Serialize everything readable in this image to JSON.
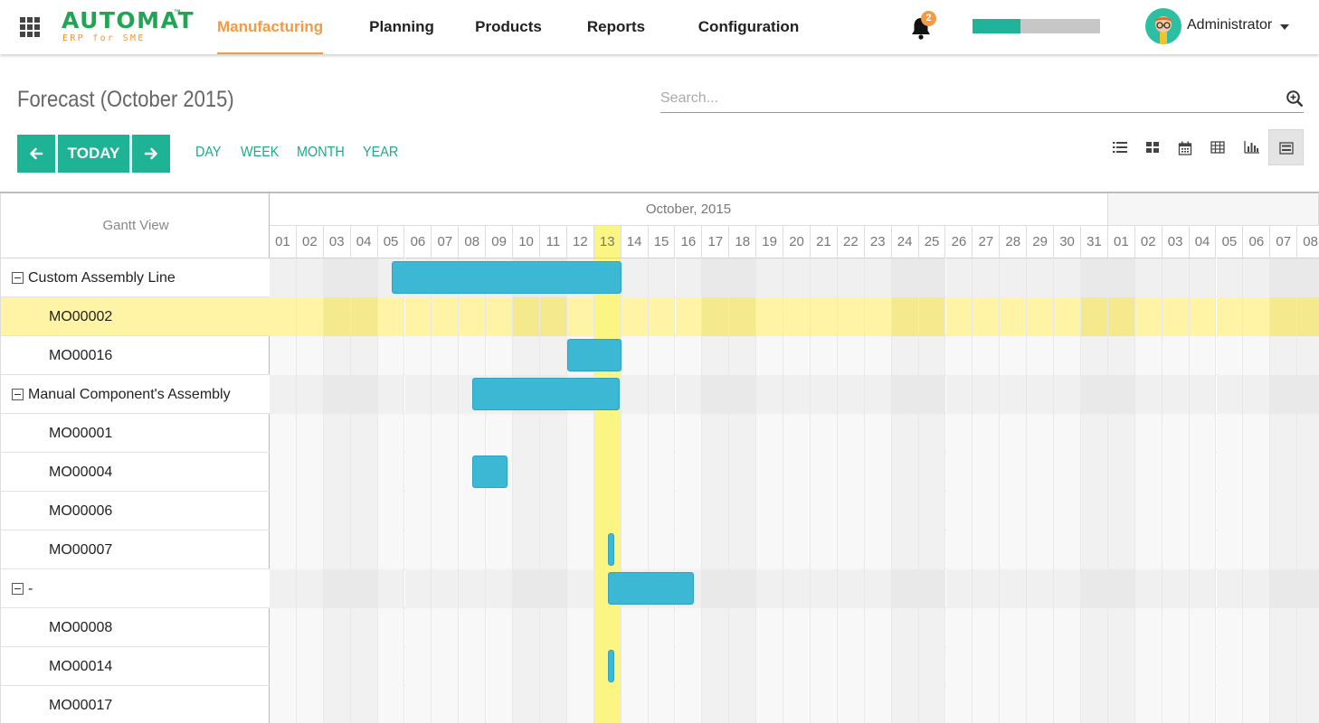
{
  "brand": {
    "name": "AUTOMAT",
    "tm": "™",
    "tagline": "ERP for SME"
  },
  "nav": {
    "items": [
      {
        "label": "Manufacturing",
        "active": true
      },
      {
        "label": "Planning"
      },
      {
        "label": "Products"
      },
      {
        "label": "Reports"
      },
      {
        "label": "Configuration"
      }
    ],
    "notifications": {
      "count": "2",
      "icon": "bell-icon"
    },
    "progress": {
      "fraction": 0.375,
      "fill_color": "#1fb39a",
      "track_color": "#c7c7c7"
    },
    "user": {
      "name": "Administrator"
    }
  },
  "page": {
    "title": "Forecast (October 2015)"
  },
  "search": {
    "placeholder": "Search..."
  },
  "controls": {
    "prev_icon": "arrow-left-icon",
    "today_label": "TODAY",
    "next_icon": "arrow-right-icon",
    "scales": [
      "DAY",
      "WEEK",
      "MONTH",
      "YEAR"
    ],
    "views": [
      {
        "icon": "list-view-icon"
      },
      {
        "icon": "kanban-view-icon"
      },
      {
        "icon": "calendar-view-icon"
      },
      {
        "icon": "pivot-view-icon"
      },
      {
        "icon": "graph-view-icon"
      },
      {
        "icon": "gantt-view-icon",
        "active": true
      }
    ]
  },
  "gantt": {
    "header_label": "Gantt View",
    "months": [
      {
        "label": "October, 2015"
      },
      {
        "label": ""
      }
    ],
    "days": [
      "01",
      "02",
      "03",
      "04",
      "05",
      "06",
      "07",
      "08",
      "09",
      "10",
      "11",
      "12",
      "13",
      "14",
      "15",
      "16",
      "17",
      "18",
      "19",
      "20",
      "21",
      "22",
      "23",
      "24",
      "25",
      "26",
      "27",
      "28",
      "29",
      "30",
      "31",
      "01",
      "02",
      "03",
      "04",
      "05",
      "06",
      "07",
      "08"
    ],
    "today_index": 12,
    "rows": [
      {
        "label": "Custom Assembly Line",
        "type": "group",
        "bar": {
          "start": 4.5,
          "end": 13
        }
      },
      {
        "label": "MO00002",
        "type": "child",
        "selected": true
      },
      {
        "label": "MO00016",
        "type": "child",
        "bar": {
          "start": 11,
          "end": 13
        }
      },
      {
        "label": "Manual Component's Assembly",
        "type": "group",
        "bar": {
          "start": 7.5,
          "end": 12.95
        }
      },
      {
        "label": "MO00001",
        "type": "child"
      },
      {
        "label": "MO00004",
        "type": "child",
        "bar": {
          "start": 7.5,
          "end": 8.8
        }
      },
      {
        "label": "MO00006",
        "type": "child"
      },
      {
        "label": "MO00007",
        "type": "child",
        "bar": {
          "start": 12.5,
          "end": 12.75
        }
      },
      {
        "label": "-",
        "type": "group",
        "bar": {
          "start": 12.5,
          "end": 15.7
        }
      },
      {
        "label": "MO00008",
        "type": "child"
      },
      {
        "label": "MO00014",
        "type": "child",
        "bar": {
          "start": 12.5,
          "end": 12.75
        }
      },
      {
        "label": "MO00017",
        "type": "child"
      }
    ]
  }
}
